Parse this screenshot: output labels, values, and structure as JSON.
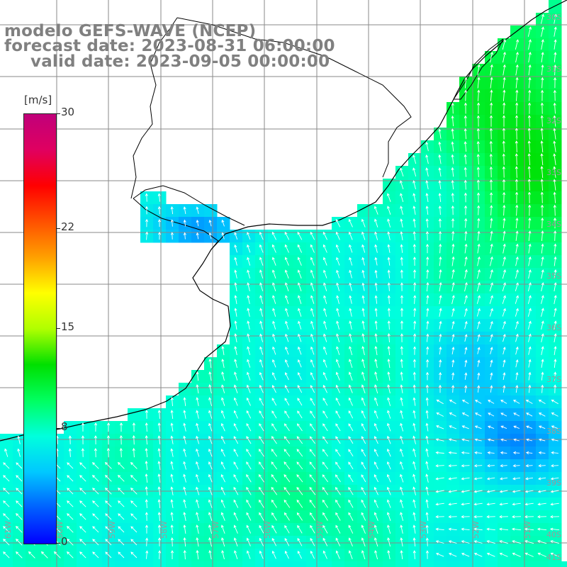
{
  "header": {
    "title": "modelo GEFS-WAVE (NCEP)",
    "forecast": "forecast date: 2023-08-31 06:00:00",
    "valid": "valid date: 2023-09-05 00:00:00"
  },
  "colorbar": {
    "unit": "[m/s]",
    "ticks": [
      {
        "label": "30",
        "value": 30
      },
      {
        "label": "22",
        "value": 22
      },
      {
        "label": "15",
        "value": 15
      },
      {
        "label": "8",
        "value": 8
      },
      {
        "label": "0",
        "value": 0
      }
    ],
    "max": 30,
    "colors": [
      "#0000ff",
      "#0060ff",
      "#00c8ff",
      "#00ffdd",
      "#00ff60",
      "#00e000",
      "#b0ff00",
      "#ffff00",
      "#ffa000",
      "#ff5000",
      "#ff0000",
      "#e00060",
      "#c0007a"
    ]
  },
  "map": {
    "variable": "wind speed",
    "lon_labels": [
      "61W",
      "60W",
      "59W",
      "58W",
      "57W",
      "56W",
      "55W",
      "54W",
      "53W",
      "52W",
      "51W"
    ],
    "lat_labels": [
      "30S",
      "31S",
      "32S",
      "33S",
      "34S",
      "35S",
      "36S",
      "37S",
      "38S",
      "39S",
      "40S",
      "41S"
    ],
    "coastline_color": "#000000",
    "grid_color": "#8a8a8a",
    "arrow_color": "#ffffff"
  }
}
